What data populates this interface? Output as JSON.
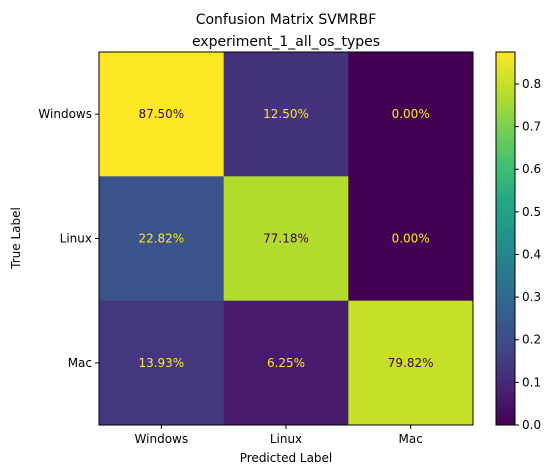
{
  "chart_data": {
    "type": "heatmap",
    "title": "Confusion Matrix SVMRBF",
    "subtitle": "experiment_1_all_os_types",
    "xlabel": "Predicted Label",
    "ylabel": "True Label",
    "x_categories": [
      "Windows",
      "Linux",
      "Mac"
    ],
    "y_categories": [
      "Windows",
      "Linux",
      "Mac"
    ],
    "values": [
      [
        0.875,
        0.125,
        0.0
      ],
      [
        0.2282,
        0.7718,
        0.0
      ],
      [
        0.1393,
        0.0625,
        0.7982
      ]
    ],
    "cell_labels": [
      [
        "87.50%",
        "12.50%",
        "0.00%"
      ],
      [
        "22.82%",
        "77.18%",
        "0.00%"
      ],
      [
        "13.93%",
        "6.25%",
        "79.82%"
      ]
    ],
    "colormap": "viridis",
    "vmin": 0.0,
    "vmax": 0.875,
    "colorbar_ticks": [
      "0.0",
      "0.1",
      "0.2",
      "0.3",
      "0.4",
      "0.5",
      "0.6",
      "0.7",
      "0.8"
    ],
    "grid": false,
    "text_color_dark": "#440154",
    "text_color_light": "#fde725"
  }
}
